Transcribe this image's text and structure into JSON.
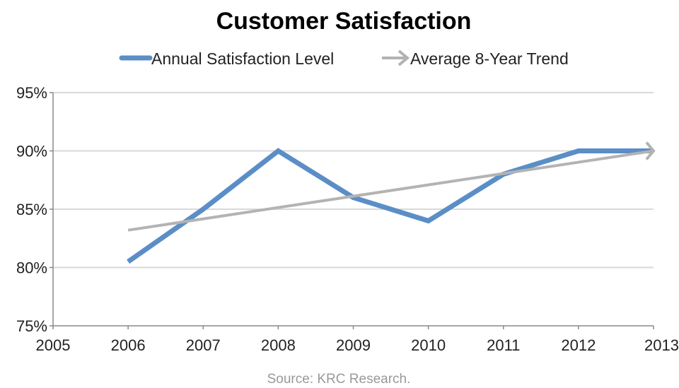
{
  "chart_data": {
    "type": "line",
    "title": "Customer Satisfaction",
    "source": "Source: KRC Research.",
    "x": [
      2006,
      2007,
      2008,
      2009,
      2010,
      2011,
      2012,
      2013
    ],
    "xlim": [
      2005,
      2013
    ],
    "ylim": [
      75,
      95
    ],
    "x_ticks": [
      "2005",
      "2006",
      "2007",
      "2008",
      "2009",
      "2010",
      "2011",
      "2012",
      "2013"
    ],
    "y_ticks": [
      "75%",
      "80%",
      "85%",
      "90%",
      "95%"
    ],
    "y_tick_values": [
      75,
      80,
      85,
      90,
      95
    ],
    "grid": "horizontal",
    "legend_placement": "top",
    "series": [
      {
        "name": "Annual Satisfaction Level",
        "color": "#5B8EC6",
        "x": [
          2006,
          2007,
          2008,
          2009,
          2010,
          2011,
          2012,
          2013
        ],
        "values": [
          80.5,
          85,
          90,
          86,
          84,
          88,
          90,
          90
        ]
      },
      {
        "name": "Average 8-Year Trend",
        "color": "#B3B3B3",
        "style": "arrow",
        "x": [
          2006,
          2013
        ],
        "values": [
          83.2,
          90.0
        ]
      }
    ]
  }
}
